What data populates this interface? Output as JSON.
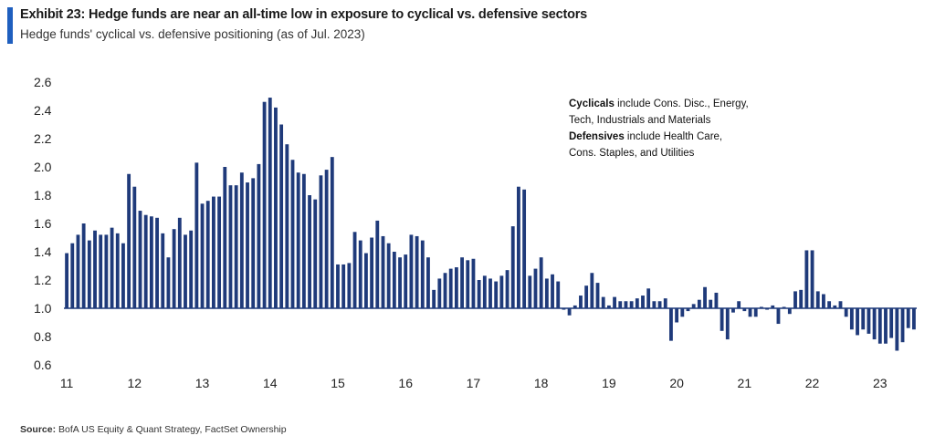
{
  "header": {
    "title": "Exhibit 23: Hedge funds are near an all-time low in exposure to cyclical vs. defensive sectors",
    "subtitle": "Hedge funds' cyclical vs. defensive positioning (as of Jul. 2023)"
  },
  "note": {
    "cyclicals_label": "Cyclicals",
    "cyclicals_text": " include Cons. Disc., Energy,",
    "cyclicals_text2": "Tech, Industrials and Materials",
    "defensives_label": "Defensives",
    "defensives_text": " include Health Care,",
    "defensives_text2": "Cons. Staples, and Utilities"
  },
  "source": {
    "label": "Source:",
    "text": " BofA US Equity & Quant Strategy, FactSet Ownership"
  },
  "colors": {
    "bar": "#1f3a7a",
    "accent": "#1f5fbf"
  },
  "chart_data": {
    "type": "bar",
    "title": "Hedge funds' cyclical vs. defensive positioning (as of Jul. 2023)",
    "xlabel": "",
    "ylabel": "",
    "baseline": 1.0,
    "ylim": [
      0.6,
      2.6
    ],
    "yticks": [
      "2.6",
      "2.4",
      "2.2",
      "2.0",
      "1.8",
      "1.6",
      "1.4",
      "1.2",
      "1.0",
      "0.8",
      "0.6"
    ],
    "xticks": [
      "11",
      "12",
      "13",
      "14",
      "15",
      "16",
      "17",
      "18",
      "19",
      "20",
      "21",
      "22",
      "23"
    ],
    "frequency": "monthly",
    "start": "Jan-2011",
    "end": "Jul-2023",
    "grid": false,
    "values": [
      1.39,
      1.46,
      1.52,
      1.6,
      1.48,
      1.55,
      1.52,
      1.52,
      1.57,
      1.53,
      1.46,
      1.95,
      1.86,
      1.69,
      1.66,
      1.65,
      1.64,
      1.53,
      1.36,
      1.56,
      1.64,
      1.52,
      1.55,
      2.03,
      1.74,
      1.76,
      1.79,
      1.79,
      2.0,
      1.87,
      1.87,
      1.96,
      1.89,
      1.92,
      2.02,
      2.46,
      2.49,
      2.42,
      2.3,
      2.16,
      2.05,
      1.96,
      1.95,
      1.8,
      1.77,
      1.94,
      1.98,
      2.07,
      1.31,
      1.31,
      1.32,
      1.54,
      1.48,
      1.39,
      1.5,
      1.62,
      1.51,
      1.46,
      1.4,
      1.36,
      1.38,
      1.52,
      1.51,
      1.48,
      1.36,
      1.13,
      1.21,
      1.25,
      1.28,
      1.29,
      1.36,
      1.34,
      1.35,
      1.2,
      1.23,
      1.21,
      1.19,
      1.23,
      1.27,
      1.58,
      1.86,
      1.84,
      1.23,
      1.28,
      1.36,
      1.21,
      1.24,
      1.19,
      0.99,
      0.95,
      1.02,
      1.09,
      1.16,
      1.25,
      1.18,
      1.08,
      1.02,
      1.08,
      1.05,
      1.05,
      1.05,
      1.07,
      1.09,
      1.14,
      1.05,
      1.05,
      1.07,
      0.77,
      0.9,
      0.94,
      0.98,
      1.03,
      1.06,
      1.15,
      1.06,
      1.11,
      0.84,
      0.78,
      0.97,
      1.05,
      0.98,
      0.94,
      0.94,
      1.01,
      0.99,
      1.02,
      0.89,
      1.01,
      0.96,
      1.12,
      1.13,
      1.41,
      1.41,
      1.12,
      1.1,
      1.05,
      1.02,
      1.05,
      0.94,
      0.85,
      0.81,
      0.85,
      0.82,
      0.78,
      0.75,
      0.75,
      0.79,
      0.7,
      0.76,
      0.86,
      0.85
    ]
  }
}
